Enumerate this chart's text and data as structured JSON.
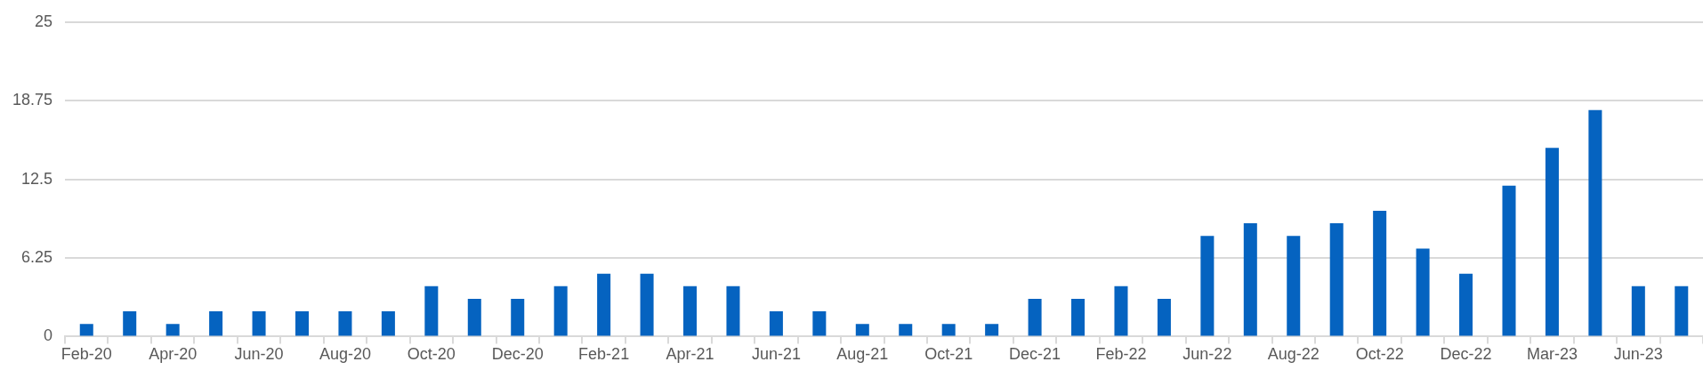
{
  "chart_data": {
    "type": "bar",
    "categories": [
      "Feb-20",
      null,
      "Apr-20",
      null,
      "Jun-20",
      null,
      "Aug-20",
      null,
      "Oct-20",
      null,
      "Dec-20",
      null,
      "Feb-21",
      null,
      "Apr-21",
      null,
      "Jun-21",
      null,
      "Aug-21",
      null,
      "Oct-21",
      null,
      "Dec-21",
      null,
      "Feb-22",
      null,
      "Jun-22",
      null,
      "Aug-22",
      null,
      "Oct-22",
      null,
      "Dec-22",
      null,
      "Mar-23",
      null,
      "Jun-23",
      null
    ],
    "values": [
      1,
      2,
      1,
      2,
      2,
      2,
      2,
      2,
      4,
      3,
      3,
      4,
      5,
      5,
      4,
      4,
      2,
      2,
      1,
      1,
      1,
      1,
      3,
      3,
      4,
      3,
      8,
      9,
      8,
      9,
      10,
      7,
      5,
      12,
      15,
      18,
      4,
      4
    ],
    "color": "#0563c0",
    "ylim": [
      0,
      25
    ],
    "yticks": [
      0,
      6.25,
      12.5,
      18.75,
      25
    ],
    "grid": "y"
  }
}
